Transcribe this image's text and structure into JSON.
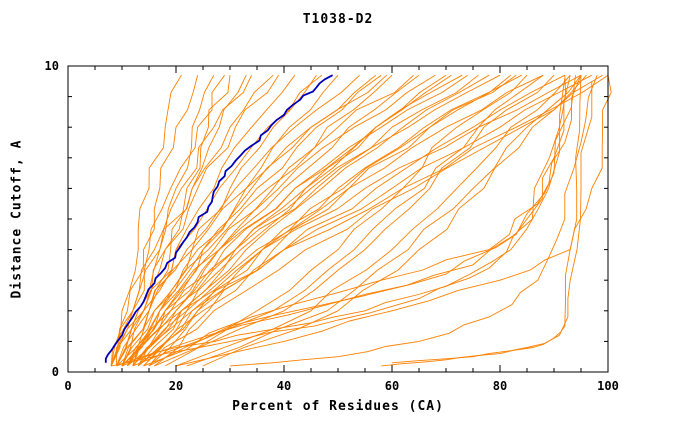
{
  "chart_data": {
    "type": "line",
    "title": "T1038-D2",
    "xlabel": "Percent of Residues (CA)",
    "ylabel": "Distance Cutoff, A",
    "xlim": [
      0,
      100
    ],
    "ylim": [
      0,
      10
    ],
    "x_ticks": [
      0,
      20,
      40,
      60,
      80,
      100
    ],
    "x_minor_step": 5,
    "y_tick_labels": [
      0,
      10
    ],
    "y_minor_step": 1,
    "grid": false,
    "legend": null,
    "colors": {
      "models": "#ff8000",
      "highlight": "#0000bb",
      "axis": "#000000",
      "background": "#ffffff"
    },
    "y_levels": [
      0.2,
      2,
      4,
      6,
      8,
      9.7
    ],
    "highlight_series": {
      "points": [
        [
          7,
          0.3
        ],
        [
          8,
          0.7
        ],
        [
          10,
          1.2
        ],
        [
          12,
          1.8
        ],
        [
          14,
          2.3
        ],
        [
          16,
          2.9
        ],
        [
          18,
          3.4
        ],
        [
          20,
          3.9
        ],
        [
          22,
          4.4
        ],
        [
          24,
          4.9
        ],
        [
          26,
          5.4
        ],
        [
          27,
          5.9
        ],
        [
          29,
          6.4
        ],
        [
          31,
          6.9
        ],
        [
          34,
          7.4
        ],
        [
          37,
          7.9
        ],
        [
          40,
          8.4
        ],
        [
          43,
          8.9
        ],
        [
          46,
          9.3
        ],
        [
          49,
          9.7
        ]
      ]
    },
    "model_series": [
      {
        "xs": [
          8,
          10,
          13,
          15,
          18,
          21
        ]
      },
      {
        "xs": [
          8,
          11,
          14,
          17,
          20,
          24
        ]
      },
      {
        "xs": [
          9,
          13,
          17,
          20,
          23,
          27
        ]
      },
      {
        "xs": [
          10,
          14,
          18,
          22,
          26,
          30
        ]
      },
      {
        "xs": [
          8,
          12,
          15,
          19,
          24,
          29
        ]
      },
      {
        "xs": [
          11,
          15,
          19,
          23,
          28,
          33
        ]
      },
      {
        "xs": [
          9,
          12,
          16,
          21,
          27,
          34
        ]
      },
      {
        "xs": [
          8,
          14,
          20,
          27,
          34,
          42
        ]
      },
      {
        "xs": [
          10,
          16,
          23,
          30,
          38,
          46
        ]
      },
      {
        "xs": [
          12,
          18,
          25,
          33,
          41,
          50
        ]
      },
      {
        "xs": [
          9,
          15,
          22,
          31,
          42,
          54
        ]
      },
      {
        "xs": [
          11,
          17,
          25,
          35,
          46,
          58
        ]
      },
      {
        "xs": [
          13,
          20,
          28,
          38,
          48,
          60
        ]
      },
      {
        "xs": [
          10,
          18,
          28,
          40,
          52,
          65
        ]
      },
      {
        "xs": [
          12,
          20,
          31,
          44,
          57,
          70
        ]
      },
      {
        "xs": [
          9,
          17,
          28,
          42,
          58,
          74
        ]
      },
      {
        "xs": [
          11,
          21,
          33,
          47,
          62,
          78
        ]
      },
      {
        "xs": [
          13,
          23,
          36,
          51,
          67,
          82
        ]
      },
      {
        "xs": [
          10,
          19,
          31,
          46,
          63,
          80
        ]
      },
      {
        "xs": [
          12,
          22,
          35,
          52,
          70,
          88
        ]
      },
      {
        "xs": [
          14,
          25,
          40,
          57,
          75,
          92
        ]
      },
      {
        "xs": [
          11,
          21,
          36,
          55,
          76,
          95
        ]
      },
      {
        "xs": [
          13,
          24,
          40,
          60,
          80,
          97
        ]
      },
      {
        "xs": [
          15,
          27,
          44,
          64,
          84,
          99
        ]
      },
      {
        "xs": [
          12,
          23,
          40,
          62,
          83,
          100
        ]
      },
      {
        "xs": [
          15,
          35,
          50,
          62,
          72,
          85
        ]
      },
      {
        "xs": [
          18,
          40,
          55,
          67,
          77,
          90
        ]
      },
      {
        "xs": [
          20,
          45,
          60,
          72,
          82,
          93
        ]
      },
      {
        "xs": [
          22,
          48,
          63,
          75,
          85,
          95
        ]
      },
      {
        "xs": [
          16,
          38,
          53,
          66,
          76,
          88
        ]
      },
      {
        "xs": [
          25,
          50,
          65,
          77,
          86,
          96
        ]
      },
      {
        "xs": [
          8,
          13,
          18,
          24,
          31,
          39
        ]
      },
      {
        "xs": [
          9,
          14,
          20,
          28,
          37,
          47
        ]
      },
      {
        "xs": [
          10,
          16,
          24,
          34,
          45,
          57
        ]
      },
      {
        "xs": [
          8,
          12,
          17,
          23,
          30,
          38
        ]
      },
      {
        "xs": [
          14,
          22,
          32,
          44,
          57,
          71
        ]
      },
      {
        "xs": [
          16,
          26,
          38,
          52,
          67,
          83
        ]
      },
      {
        "xs": [
          9,
          15,
          23,
          33,
          45,
          59
        ]
      },
      {
        "xs": [
          11,
          18,
          27,
          39,
          53,
          68
        ]
      },
      {
        "xs": [
          12,
          19,
          29,
          42,
          57,
          73
        ]
      },
      {
        "xs": [
          10,
          17,
          26,
          37,
          50,
          64
        ]
      },
      {
        "xs": [
          13,
          21,
          31,
          45,
          60,
          76
        ]
      },
      {
        "xs": [
          15,
          24,
          36,
          50,
          66,
          84
        ]
      },
      {
        "points": [
          [
            58,
            0.2
          ],
          [
            70,
            0.4
          ],
          [
            80,
            0.6
          ],
          [
            88,
            0.9
          ],
          [
            92,
            1.5
          ],
          [
            93,
            4
          ],
          [
            94,
            7
          ],
          [
            95,
            9.7
          ]
        ]
      },
      {
        "points": [
          [
            60,
            0.3
          ],
          [
            75,
            0.5
          ],
          [
            85,
            0.8
          ],
          [
            91,
            1.2
          ],
          [
            93,
            3
          ],
          [
            95,
            6
          ],
          [
            97,
            9.5
          ]
        ]
      },
      {
        "points": [
          [
            30,
            0.2
          ],
          [
            50,
            0.5
          ],
          [
            65,
            1
          ],
          [
            78,
            1.8
          ],
          [
            87,
            3
          ],
          [
            92,
            5
          ],
          [
            95,
            7.5
          ],
          [
            98,
            9.7
          ]
        ]
      },
      {
        "points": [
          [
            12,
            0.2
          ],
          [
            30,
            1.5
          ],
          [
            55,
            2.5
          ],
          [
            75,
            3.5
          ],
          [
            85,
            5
          ],
          [
            90,
            7
          ],
          [
            93,
            9.7
          ]
        ]
      },
      {
        "points": [
          [
            14,
            0.2
          ],
          [
            34,
            1.8
          ],
          [
            58,
            3
          ],
          [
            78,
            4
          ],
          [
            87,
            5.5
          ],
          [
            92,
            7.5
          ],
          [
            95,
            9.7
          ]
        ]
      },
      {
        "points": [
          [
            10,
            0.2
          ],
          [
            26,
            1.2
          ],
          [
            48,
            2.2
          ],
          [
            70,
            3.2
          ],
          [
            83,
            4.5
          ],
          [
            90,
            6.5
          ],
          [
            94,
            9.7
          ]
        ]
      },
      {
        "points": [
          [
            20,
            0.2
          ],
          [
            40,
            1
          ],
          [
            60,
            2
          ],
          [
            80,
            3
          ],
          [
            93,
            4
          ],
          [
            97,
            6
          ],
          [
            99,
            8
          ],
          [
            100,
            9.7
          ]
        ]
      },
      {
        "points": [
          [
            9,
            0.2
          ],
          [
            20,
            0.8
          ],
          [
            38,
            1.4
          ],
          [
            55,
            2
          ],
          [
            70,
            2.8
          ],
          [
            82,
            4
          ],
          [
            89,
            6
          ],
          [
            92,
            9.6
          ]
        ]
      },
      {
        "points": [
          [
            8,
            0.2
          ],
          [
            18,
            0.6
          ],
          [
            33,
            1.1
          ],
          [
            50,
            1.7
          ],
          [
            65,
            2.4
          ],
          [
            78,
            3.4
          ],
          [
            86,
            5
          ],
          [
            91,
            8
          ],
          [
            92,
            9.7
          ]
        ]
      }
    ]
  }
}
